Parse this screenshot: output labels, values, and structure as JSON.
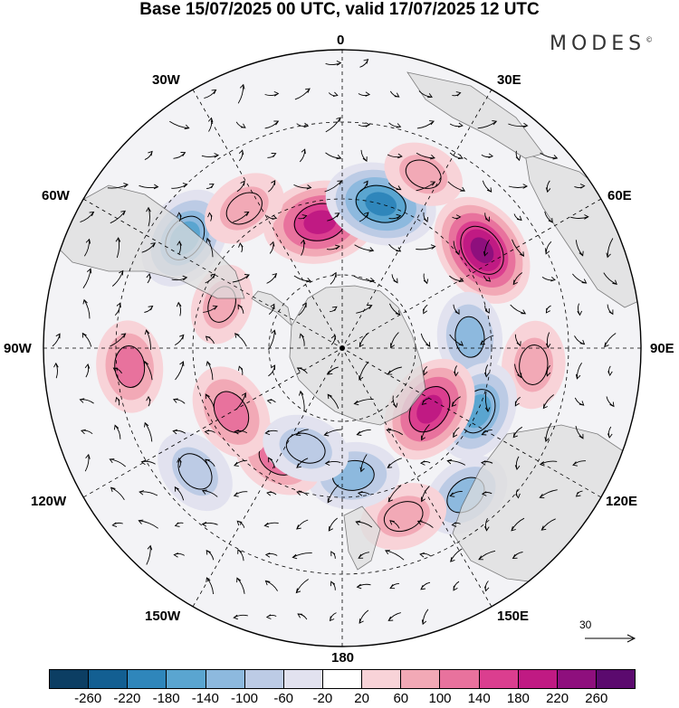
{
  "title": "Base 15/07/2025 00 UTC, valid 17/07/2025 12 UTC",
  "brand": "MODES",
  "brand_mark": "©",
  "lon_labels": {
    "l0": "0",
    "l30e": "30E",
    "l60e": "60E",
    "l90e": "90E",
    "l120e": "120E",
    "l150e": "150E",
    "l180": "180",
    "l150w": "150W",
    "l120w": "120W",
    "l90w": "90W",
    "l60w": "60W",
    "l30w": "30W"
  },
  "ref_vector": "30",
  "colorbar": {
    "colors": [
      "#0c3e63",
      "#135f92",
      "#2f86bb",
      "#5aa5d0",
      "#8db9de",
      "#bccbe5",
      "#e2e2ef",
      "#ffffff",
      "#f8d3d8",
      "#f2a9b6",
      "#e8729d",
      "#db3e8f",
      "#c01a83",
      "#8e0f7d",
      "#5b0a6e"
    ],
    "ticks": [
      "-260",
      "-220",
      "-180",
      "-140",
      "-100",
      "-60",
      "-20",
      "20",
      "60",
      "100",
      "140",
      "180",
      "220",
      "260"
    ]
  },
  "anomalies": [
    {
      "lat": -60,
      "lon": -10,
      "value": 210
    },
    {
      "lat": -55,
      "lon": 15,
      "value": -200
    },
    {
      "lat": -50,
      "lon": 55,
      "value": 220
    },
    {
      "lat": -45,
      "lon": -55,
      "value": -170
    },
    {
      "lat": -50,
      "lon": -35,
      "value": 80
    },
    {
      "lat": -45,
      "lon": 25,
      "value": 60
    },
    {
      "lat": -60,
      "lon": 85,
      "value": -100
    },
    {
      "lat": -45,
      "lon": 95,
      "value": 90
    },
    {
      "lat": -55,
      "lon": 115,
      "value": -150
    },
    {
      "lat": -65,
      "lon": 125,
      "value": 190
    },
    {
      "lat": -45,
      "lon": 140,
      "value": -110
    },
    {
      "lat": -48,
      "lon": 160,
      "value": 90
    },
    {
      "lat": -60,
      "lon": 175,
      "value": -110
    },
    {
      "lat": -60,
      "lon": -150,
      "value": 100
    },
    {
      "lat": -45,
      "lon": -130,
      "value": -90
    },
    {
      "lat": -40,
      "lon": -95,
      "value": 110
    },
    {
      "lat": -60,
      "lon": -120,
      "value": 130
    },
    {
      "lat": -65,
      "lon": -160,
      "value": -90
    },
    {
      "lat": -60,
      "lon": -70,
      "value": 60
    }
  ]
}
